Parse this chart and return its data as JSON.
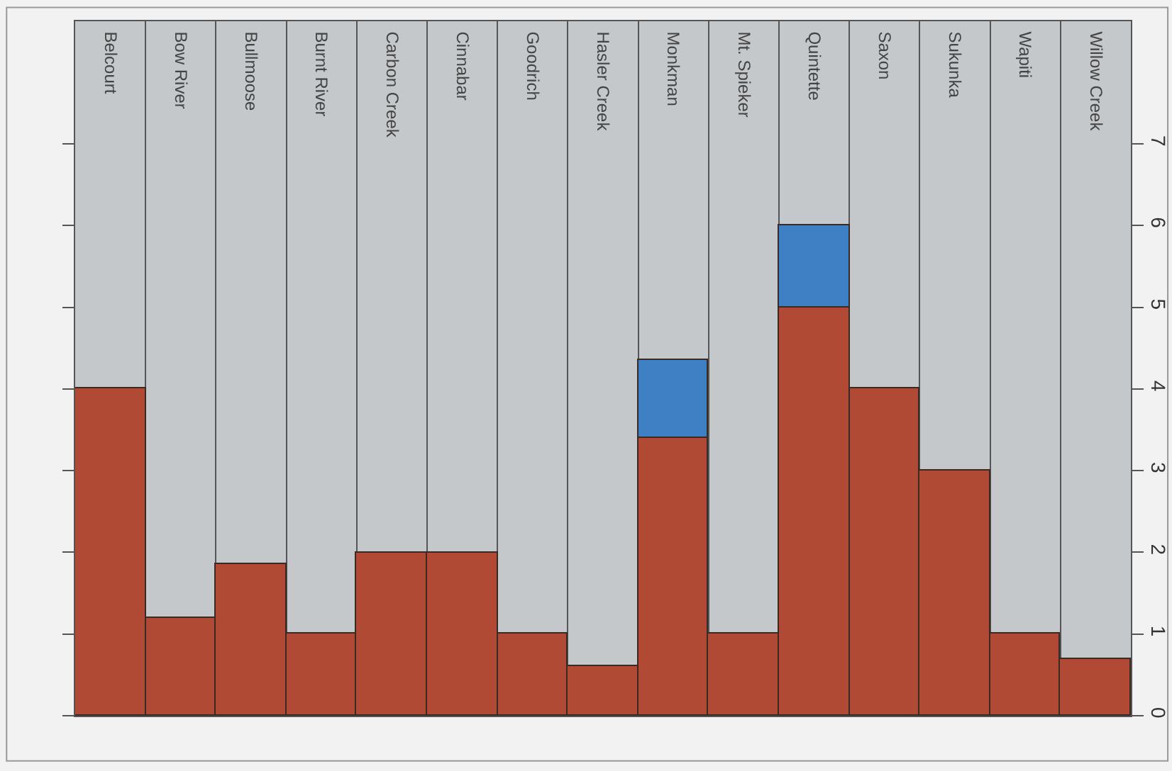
{
  "chart_data": {
    "type": "bar",
    "stacked": true,
    "categories": [
      "Belcourt",
      "Bow River",
      "Bullmoose",
      "Burnt River",
      "Carbon Creek",
      "Cinnabar",
      "Goodrich",
      "Hasler Creek",
      "Monkman",
      "Mt. Spieker",
      "Quintette",
      "Saxon",
      "Sukunka",
      "Wapiti",
      "Willow Creek"
    ],
    "series": [
      {
        "color": "#b14a35",
        "values": [
          4.0,
          1.2,
          1.85,
          1.0,
          2.0,
          2.0,
          1.0,
          0.6,
          3.4,
          1.0,
          5.0,
          4.0,
          3.0,
          1.0,
          0.7
        ]
      },
      {
        "color": "#3f7fc4",
        "values": [
          null,
          null,
          null,
          null,
          null,
          null,
          null,
          null,
          0.95,
          null,
          1.0,
          null,
          null,
          null,
          null
        ]
      }
    ],
    "ylim": [
      0,
      8.5
    ],
    "yticks": [
      0,
      1,
      2,
      3,
      4,
      5,
      6,
      7
    ],
    "grid": "x"
  }
}
